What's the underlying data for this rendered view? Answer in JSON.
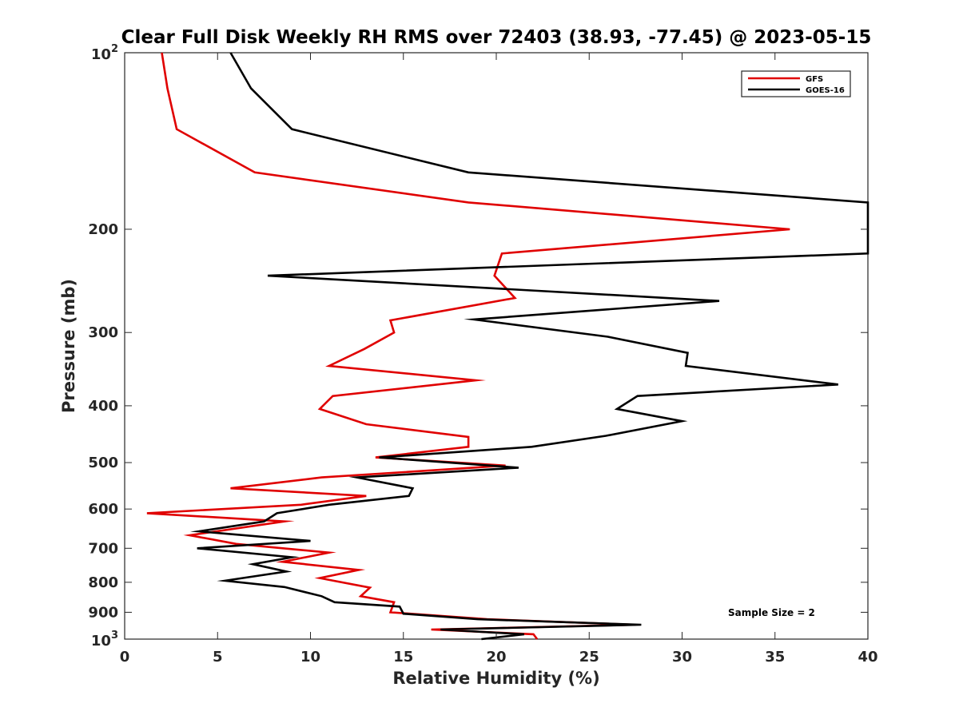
{
  "chart_data": {
    "type": "line",
    "title": "Clear Full Disk Weekly RH RMS over 72403 (38.93, -77.45) @ 2023-05-15",
    "xlabel": "Relative Humidity (%)",
    "ylabel": "Pressure (mb)",
    "xlim": [
      0,
      40
    ],
    "ylim": [
      100,
      1000
    ],
    "y_scale": "log",
    "y_reversed": true,
    "grid": false,
    "legend_position": "top-right",
    "annotation": "Sample Size = 2",
    "x_ticks": [
      "0",
      "5",
      "10",
      "15",
      "20",
      "25",
      "30",
      "35",
      "40"
    ],
    "y_ticks": [
      {
        "value": 200,
        "label": "200"
      },
      {
        "value": 300,
        "label": "300"
      },
      {
        "value": 400,
        "label": "400"
      },
      {
        "value": 500,
        "label": "500"
      },
      {
        "value": 600,
        "label": "600"
      },
      {
        "value": 700,
        "label": "700"
      },
      {
        "value": 800,
        "label": "800"
      },
      {
        "value": 900,
        "label": "900"
      }
    ],
    "y_tick_top": {
      "base": "10",
      "exp": "2"
    },
    "y_tick_bottom": {
      "base": "10",
      "exp": "3"
    },
    "series": [
      {
        "name": "GFS",
        "color": "#e00000",
        "points": [
          [
            2.0,
            100
          ],
          [
            2.3,
            115
          ],
          [
            2.8,
            135
          ],
          [
            7.0,
            160
          ],
          [
            18.5,
            180
          ],
          [
            35.8,
            200
          ],
          [
            20.3,
            220
          ],
          [
            19.9,
            240
          ],
          [
            21.0,
            262
          ],
          [
            14.3,
            286
          ],
          [
            14.5,
            300
          ],
          [
            12.9,
            320
          ],
          [
            11.0,
            342
          ],
          [
            18.9,
            362
          ],
          [
            11.2,
            385
          ],
          [
            10.5,
            405
          ],
          [
            13.0,
            430
          ],
          [
            18.5,
            452
          ],
          [
            18.5,
            470
          ],
          [
            13.5,
            490
          ],
          [
            20.5,
            506
          ],
          [
            10.6,
            530
          ],
          [
            5.7,
            553
          ],
          [
            13.0,
            570
          ],
          [
            9.5,
            590
          ],
          [
            1.2,
            610
          ],
          [
            8.6,
            630
          ],
          [
            3.5,
            665
          ],
          [
            6.0,
            688
          ],
          [
            11.0,
            712
          ],
          [
            8.5,
            738
          ],
          [
            12.6,
            762
          ],
          [
            10.5,
            787
          ],
          [
            13.2,
            817
          ],
          [
            12.7,
            845
          ],
          [
            14.5,
            865
          ],
          [
            14.3,
            900
          ],
          [
            19.5,
            925
          ],
          [
            27.5,
            945
          ],
          [
            16.5,
            963
          ],
          [
            22.0,
            981
          ],
          [
            22.2,
            1000
          ]
        ]
      },
      {
        "name": "GOES-16",
        "color": "#000000",
        "points": [
          [
            5.7,
            100
          ],
          [
            6.8,
            115
          ],
          [
            9.0,
            135
          ],
          [
            18.5,
            160
          ],
          [
            40.0,
            180
          ],
          [
            40.0,
            220
          ],
          [
            7.7,
            240
          ],
          [
            32.0,
            265
          ],
          [
            18.8,
            285
          ],
          [
            26.0,
            305
          ],
          [
            30.3,
            325
          ],
          [
            30.2,
            342
          ],
          [
            38.4,
            368
          ],
          [
            27.6,
            385
          ],
          [
            26.5,
            405
          ],
          [
            30.0,
            425
          ],
          [
            25.9,
            450
          ],
          [
            21.9,
            470
          ],
          [
            13.7,
            490
          ],
          [
            21.2,
            510
          ],
          [
            12.5,
            530
          ],
          [
            15.5,
            553
          ],
          [
            15.3,
            570
          ],
          [
            11.0,
            590
          ],
          [
            8.2,
            610
          ],
          [
            7.5,
            630
          ],
          [
            4.0,
            655
          ],
          [
            10.0,
            680
          ],
          [
            3.9,
            700
          ],
          [
            9.0,
            725
          ],
          [
            6.9,
            745
          ],
          [
            8.7,
            767
          ],
          [
            5.4,
            795
          ],
          [
            8.6,
            815
          ],
          [
            10.6,
            845
          ],
          [
            11.3,
            865
          ],
          [
            14.8,
            880
          ],
          [
            15.0,
            905
          ],
          [
            19.0,
            925
          ],
          [
            27.8,
            945
          ],
          [
            17.0,
            963
          ],
          [
            21.5,
            981
          ],
          [
            19.2,
            1000
          ]
        ]
      }
    ]
  }
}
